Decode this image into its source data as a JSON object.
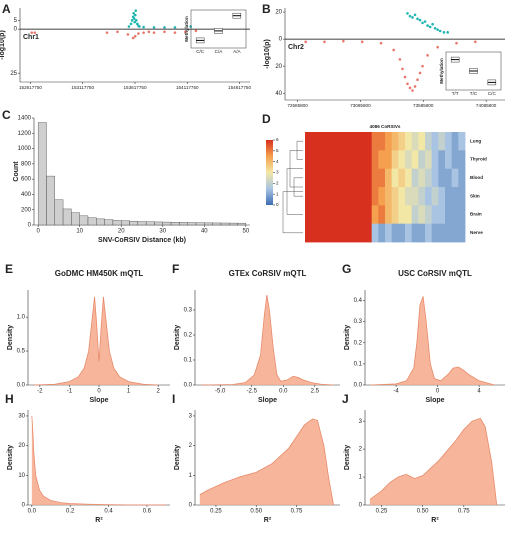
{
  "chart_data": [
    {
      "panel": "A",
      "type": "scatter",
      "ylabel": "-log10(p)",
      "annotation": "Chr1",
      "xlim": [
        152517750,
        154717750
      ],
      "xticks": [
        152617750,
        153117750,
        153617750,
        154117750,
        154617750
      ],
      "ylim": [
        -30,
        12
      ],
      "yticks": [
        5,
        0,
        {
          "value": -25,
          "label": "25"
        }
      ],
      "series": [
        {
          "color": "#1fb5b0",
          "x": [
            153560000,
            153580000,
            153590000,
            153600000,
            153605000,
            153610000,
            153615000,
            153620000,
            153625000,
            153630000,
            153640000,
            153650000,
            153660000,
            153700000,
            153800000,
            153900000,
            154000000,
            154150000
          ],
          "values": [
            1.5,
            3,
            5,
            7,
            9,
            6,
            4,
            8,
            10.5,
            5,
            3,
            2,
            1.5,
            1.2,
            1,
            1,
            1,
            1.5
          ]
        },
        {
          "color": "#e8786b",
          "x": [
            152630000,
            152660000,
            153350000,
            153450000,
            153550000,
            153600000,
            153620000,
            153650000,
            153700000,
            153750000,
            153800000,
            153900000,
            154000000,
            154100000,
            154200000
          ],
          "values": [
            -2,
            -2,
            -2,
            -1.5,
            -3,
            -5,
            -4,
            -2.5,
            -2,
            -1.5,
            -2,
            -1.5,
            -2,
            -1.5,
            -1
          ]
        }
      ],
      "inset": {
        "ylabel": "Methylation",
        "categories": [
          "C/C",
          "C/A",
          "A/A"
        ],
        "values": [
          0.2,
          0.45,
          0.85
        ],
        "ylim": [
          0,
          1
        ]
      }
    },
    {
      "panel": "B",
      "type": "scatter",
      "ylabel": "-log10(p)",
      "annotation": "Chr2",
      "xlim": [
        72485800,
        74235800
      ],
      "xticks": [
        72585800,
        73085800,
        73585800,
        74085800
      ],
      "ylim": [
        -45,
        23
      ],
      "yticks": [
        20,
        0,
        {
          "value": -20,
          "label": "20"
        },
        {
          "value": -40,
          "label": "40"
        }
      ],
      "series": [
        {
          "color": "#1fb5b0",
          "x": [
            73460000,
            73480000,
            73500000,
            73520000,
            73540000,
            73560000,
            73580000,
            73600000,
            73620000,
            73640000,
            73660000,
            73680000,
            73700000,
            73720000,
            73750000,
            73780000
          ],
          "values": [
            19,
            17,
            16,
            18,
            15,
            14,
            12,
            13,
            10,
            9,
            11,
            8,
            7,
            6,
            5,
            5
          ]
        },
        {
          "color": "#e8786b",
          "x": [
            72650000,
            72800000,
            72950000,
            73100000,
            73250000,
            73350000,
            73400000,
            73420000,
            73440000,
            73460000,
            73480000,
            73500000,
            73520000,
            73540000,
            73560000,
            73580000,
            73620000,
            73700000,
            73850000,
            74000000
          ],
          "values": [
            -2,
            -2,
            -1.5,
            -2,
            -3,
            -8,
            -15,
            -22,
            -28,
            -33,
            -36,
            -38,
            -35,
            -30,
            -25,
            -20,
            -12,
            -6,
            -3,
            -2
          ]
        }
      ],
      "inset": {
        "ylabel": "Methylation",
        "categories": [
          "T/T",
          "T/C",
          "C/C"
        ],
        "values": [
          0.8,
          0.5,
          0.2
        ],
        "ylim": [
          0,
          1
        ]
      }
    },
    {
      "panel": "C",
      "type": "histogram",
      "xlabel": "SNV-CoRSIV Distance (kb)",
      "ylabel": "Count",
      "color": "#cfcfcf",
      "bins": [
        0,
        2,
        4,
        6,
        8,
        10,
        12,
        14,
        16,
        18,
        20,
        22,
        24,
        26,
        28,
        30,
        32,
        34,
        36,
        38,
        40,
        42,
        44,
        46,
        48,
        50
      ],
      "counts": [
        1340,
        640,
        330,
        210,
        160,
        120,
        95,
        80,
        70,
        60,
        55,
        50,
        45,
        42,
        40,
        38,
        36,
        34,
        32,
        30,
        28,
        27,
        26,
        25,
        24
      ],
      "xlim": [
        -1,
        51
      ],
      "xticks": [
        0,
        10,
        20,
        30,
        40,
        50
      ],
      "ylim": [
        0,
        1400
      ],
      "yticks": [
        0,
        200,
        400,
        600,
        800,
        1000,
        1200,
        1400
      ]
    },
    {
      "panel": "D",
      "type": "heatmap",
      "title": "4086 CoRSIVs",
      "rows": [
        "Lung",
        "Thyroid",
        "Blood",
        "Skin",
        "Brain",
        "Nerve"
      ],
      "zlim": [
        0,
        6
      ],
      "colorbar_ticks": [
        0,
        1,
        2,
        3,
        4,
        5,
        6
      ],
      "colorscale": [
        "#3b6db3",
        "#a9c4e2",
        "#f3e7a6",
        "#f5a04e",
        "#d7301f"
      ],
      "values": [
        [
          6,
          6,
          6,
          6,
          6,
          6,
          6,
          6,
          6,
          6,
          5,
          5,
          4.5,
          4,
          3.5,
          3,
          2.5,
          3,
          2,
          1.5,
          2,
          1.5,
          1,
          1.5
        ],
        [
          6,
          6,
          6,
          6,
          6,
          6,
          6,
          6,
          6,
          6,
          5,
          4.5,
          4.5,
          3.5,
          3,
          2.5,
          3,
          2,
          2.5,
          1.5,
          1,
          1.5,
          1,
          1
        ],
        [
          6,
          6,
          6,
          6,
          6,
          6,
          6,
          6,
          6,
          6,
          5,
          5,
          4,
          3,
          3.5,
          3,
          2,
          2.5,
          2,
          1.5,
          1,
          1,
          1.5,
          1
        ],
        [
          6,
          6,
          6,
          6,
          6,
          6,
          6,
          6,
          6,
          6,
          5,
          4.5,
          4,
          3.5,
          3,
          2.5,
          2.5,
          2,
          1.5,
          2,
          1.5,
          1,
          1,
          1
        ],
        [
          6,
          6,
          6,
          6,
          6,
          6,
          6,
          6,
          6,
          6,
          4.5,
          5,
          4,
          3.5,
          3,
          3,
          2,
          2.5,
          2,
          1.5,
          1.5,
          1,
          1,
          1
        ],
        [
          6,
          6,
          6,
          6,
          6,
          6,
          6,
          6,
          6,
          6,
          1.5,
          1,
          1.5,
          1,
          1,
          1.5,
          1,
          1,
          1.5,
          1,
          1,
          1,
          1,
          1
        ]
      ]
    },
    {
      "panel": "E",
      "type": "area",
      "title": "GoDMC HM450K mQTL",
      "xlabel": "Slope",
      "ylabel": "Density",
      "color": "#f6a98a",
      "x": [
        -2.2,
        -1.5,
        -1,
        -0.7,
        -0.5,
        -0.35,
        -0.25,
        -0.15,
        -0.08,
        0,
        0.08,
        0.15,
        0.25,
        0.35,
        0.5,
        0.7,
        1,
        1.5,
        2
      ],
      "values": [
        0,
        0.01,
        0.05,
        0.12,
        0.25,
        0.5,
        0.9,
        1.3,
        0.9,
        0.35,
        0.9,
        1.3,
        0.9,
        0.5,
        0.25,
        0.12,
        0.05,
        0.01,
        0
      ],
      "xlim": [
        -2.4,
        2.4
      ],
      "xticks": [
        -2,
        -1,
        0,
        1,
        2
      ],
      "ylim": [
        0,
        1.4
      ],
      "yticks": [
        {
          "value": 0,
          "label": "0.0"
        },
        0.5,
        {
          "value": 1,
          "label": "1.0"
        }
      ]
    },
    {
      "panel": "F",
      "type": "area",
      "title": "GTEx CoRSIV mQTL",
      "xlabel": "Slope",
      "ylabel": "Density",
      "color": "#f6a98a",
      "x": [
        -6.5,
        -4,
        -3,
        -2.3,
        -1.8,
        -1.5,
        -1.3,
        -1.1,
        -0.8,
        -0.5,
        -0.2,
        0.3,
        0.8,
        1.2,
        1.6,
        2.2,
        3,
        4
      ],
      "values": [
        0,
        0.002,
        0.01,
        0.04,
        0.12,
        0.28,
        0.36,
        0.3,
        0.15,
        0.04,
        0.015,
        0.02,
        0.035,
        0.03,
        0.02,
        0.01,
        0.003,
        0
      ],
      "xlim": [
        -7,
        4.5
      ],
      "xticks": [
        {
          "value": -5,
          "label": "-5.0"
        },
        -2.5,
        {
          "value": 0,
          "label": "0.0"
        },
        2.5
      ],
      "ylim": [
        0,
        0.38
      ],
      "yticks": [
        {
          "value": 0,
          "label": "0.0"
        },
        0.1,
        0.2,
        0.3
      ]
    },
    {
      "panel": "G",
      "type": "area",
      "title": "USC CoRSIV mQTL",
      "xlabel": "Slope",
      "ylabel": "Density",
      "color": "#f6a98a",
      "x": [
        -6.5,
        -4,
        -3,
        -2.3,
        -2,
        -1.7,
        -1.4,
        -1.1,
        -0.7,
        -0.3,
        0.3,
        1,
        1.5,
        2,
        2.5,
        3,
        4,
        5.5
      ],
      "values": [
        0,
        0.005,
        0.02,
        0.08,
        0.2,
        0.38,
        0.42,
        0.3,
        0.1,
        0.03,
        0.02,
        0.05,
        0.08,
        0.085,
        0.07,
        0.05,
        0.02,
        0
      ],
      "xlim": [
        -7,
        6.5
      ],
      "xticks": [
        -4,
        0,
        4
      ],
      "ylim": [
        0,
        0.45
      ],
      "yticks": [
        {
          "value": 0,
          "label": "0.0"
        },
        0.1,
        0.2,
        0.3,
        0.4
      ]
    },
    {
      "panel": "H",
      "type": "area",
      "xlabel": "R²",
      "ylabel": "Density",
      "color": "#f6a98a",
      "x": [
        0,
        0.005,
        0.01,
        0.02,
        0.04,
        0.06,
        0.1,
        0.15,
        0.2,
        0.3,
        0.4,
        0.5,
        0.6,
        0.7
      ],
      "values": [
        30,
        25,
        18,
        10,
        5,
        3,
        1.5,
        0.8,
        0.5,
        0.25,
        0.1,
        0.05,
        0.02,
        0
      ],
      "xlim": [
        -0.02,
        0.72
      ],
      "xticks": [
        {
          "value": 0,
          "label": "0.0"
        },
        0.2,
        0.4,
        0.6
      ],
      "ylim": [
        0,
        32
      ],
      "yticks": [
        0,
        10,
        20,
        30
      ]
    },
    {
      "panel": "I",
      "type": "area",
      "xlabel": "R²",
      "ylabel": "Density",
      "color": "#f6a98a",
      "x": [
        0.15,
        0.2,
        0.3,
        0.4,
        0.5,
        0.6,
        0.7,
        0.75,
        0.8,
        0.85,
        0.88,
        0.92,
        0.95,
        0.98
      ],
      "values": [
        0.35,
        0.5,
        0.75,
        0.95,
        1.1,
        1.4,
        1.9,
        2.3,
        2.7,
        2.9,
        2.85,
        2,
        0.9,
        0
      ],
      "xlim": [
        0.12,
        1.02
      ],
      "xticks": [
        0.25,
        {
          "value": 0.5,
          "label": "0.50"
        },
        0.75
      ],
      "ylim": [
        0,
        3.2
      ],
      "yticks": [
        0,
        1,
        2,
        3
      ]
    },
    {
      "panel": "J",
      "type": "area",
      "xlabel": "R²",
      "ylabel": "Density",
      "color": "#f6a98a",
      "x": [
        0.18,
        0.25,
        0.3,
        0.35,
        0.4,
        0.45,
        0.5,
        0.6,
        0.7,
        0.75,
        0.8,
        0.85,
        0.88,
        0.92,
        0.95
      ],
      "values": [
        0.2,
        0.5,
        0.8,
        1,
        1.1,
        0.95,
        1.05,
        1.6,
        2.3,
        2.7,
        3,
        3.1,
        2.8,
        1.5,
        0
      ],
      "xlim": [
        0.15,
        1
      ],
      "xticks": [
        0.25,
        {
          "value": 0.5,
          "label": "0.50"
        },
        0.75
      ],
      "ylim": [
        0,
        3.4
      ],
      "yticks": [
        0,
        1,
        2,
        3
      ]
    }
  ]
}
